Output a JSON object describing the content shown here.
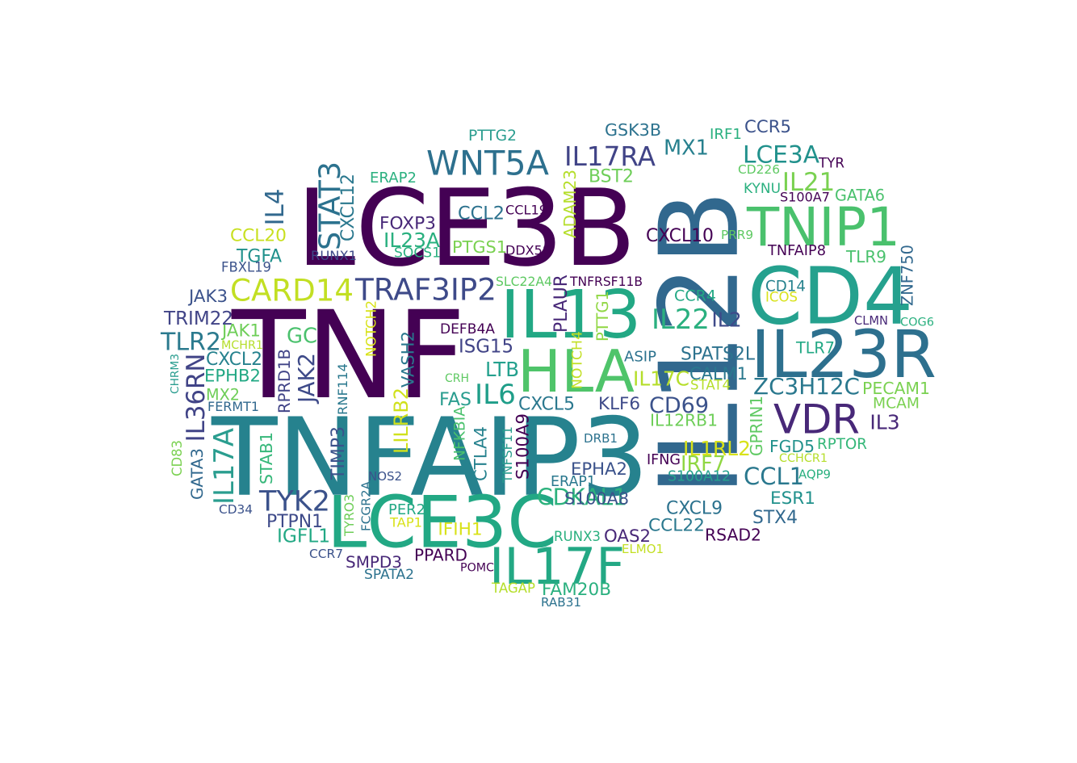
{
  "words": [
    {
      "text": "TNF",
      "color": "#440154"
    },
    {
      "text": "LCE3B",
      "color": "#440154"
    },
    {
      "text": "IL12B",
      "color": "#31688e"
    },
    {
      "text": "TNFAIP3",
      "color": "#26828e"
    },
    {
      "text": "CD4",
      "color": "#25a18e"
    },
    {
      "text": "LCE3C",
      "color": "#22a884"
    },
    {
      "text": "IL23R",
      "color": "#2d708e"
    },
    {
      "text": "HLA",
      "color": "#4fc46a"
    },
    {
      "text": "IL13",
      "color": "#22a884"
    },
    {
      "text": "TNIP1",
      "color": "#4ac16d"
    },
    {
      "text": "WNT5A",
      "color": "#2d708e"
    },
    {
      "text": "IL17F",
      "color": "#23a884"
    },
    {
      "text": "VDR",
      "color": "#482878"
    },
    {
      "text": "CARD14",
      "color": "#c2df23"
    },
    {
      "text": "TRAF3IP2",
      "color": "#3e4a89"
    },
    {
      "text": "CDKAL1",
      "color": "#2db27d"
    },
    {
      "text": "ZC3H12C",
      "color": "#2a788e"
    },
    {
      "text": "TYK2",
      "color": "#3b528b"
    },
    {
      "text": "IL17RA",
      "color": "#414487"
    },
    {
      "text": "LCE3A",
      "color": "#21918c"
    },
    {
      "text": "STAT3",
      "color": "#2c728e"
    },
    {
      "text": "IL17A",
      "color": "#2a9d8f"
    },
    {
      "text": "IL36RN",
      "color": "#414487"
    },
    {
      "text": "CD69",
      "color": "#3b528b"
    },
    {
      "text": "MX1",
      "color": "#27808e"
    },
    {
      "text": "IL22",
      "color": "#2ab07f"
    },
    {
      "text": "TLR2",
      "color": "#2b7a8e"
    },
    {
      "text": "JAK2",
      "color": "#3e4a89"
    },
    {
      "text": "GC",
      "color": "#4ac16d"
    },
    {
      "text": "IL6",
      "color": "#1f9e89"
    },
    {
      "text": "CCL1",
      "color": "#2a788e"
    },
    {
      "text": "IL21",
      "color": "#7ad151"
    },
    {
      "text": "PECAM1",
      "color": "#7ad151"
    },
    {
      "text": "IL4",
      "color": "#31688e"
    },
    {
      "text": "CXCL12",
      "color": "#2a788e"
    },
    {
      "text": "CCL20",
      "color": "#c8e020"
    },
    {
      "text": "FOXP3",
      "color": "#482878"
    },
    {
      "text": "CCL2",
      "color": "#2c728e"
    },
    {
      "text": "PTGS1",
      "color": "#7ad151"
    },
    {
      "text": "IL23A",
      "color": "#2ab07f"
    },
    {
      "text": "ADAM23",
      "color": "#b5de2b"
    },
    {
      "text": "BST2",
      "color": "#6ece58"
    },
    {
      "text": "CXCL10",
      "color": "#440154"
    },
    {
      "text": "TGFA",
      "color": "#21918c"
    },
    {
      "text": "PLAUR",
      "color": "#482878"
    },
    {
      "text": "PTTG1",
      "color": "#90d743"
    },
    {
      "text": "CCR4",
      "color": "#22a884"
    },
    {
      "text": "ISG15",
      "color": "#414487"
    },
    {
      "text": "VASH2",
      "color": "#2a788e"
    },
    {
      "text": "LILRB2",
      "color": "#d0e11c"
    },
    {
      "text": "TIMP3",
      "color": "#3b528b"
    },
    {
      "text": "CTLA4",
      "color": "#26828e"
    },
    {
      "text": "CXCL5",
      "color": "#2a788e"
    },
    {
      "text": "KLF6",
      "color": "#3e4a89"
    },
    {
      "text": "IL17C",
      "color": "#b5de2b"
    },
    {
      "text": "CALM1",
      "color": "#2a788e"
    },
    {
      "text": "SPATS2L",
      "color": "#2c728e"
    },
    {
      "text": "MCAM",
      "color": "#7ad151"
    },
    {
      "text": "IL3",
      "color": "#482878"
    },
    {
      "text": "FGD5",
      "color": "#21918c"
    },
    {
      "text": "RPTOR",
      "color": "#35b779"
    },
    {
      "text": "IRF7",
      "color": "#90d743"
    },
    {
      "text": "IL1RL2",
      "color": "#d8e219"
    },
    {
      "text": "GPRIN1",
      "color": "#5ec962"
    },
    {
      "text": "ESR1",
      "color": "#21918c"
    },
    {
      "text": "STX4",
      "color": "#31688e"
    },
    {
      "text": "RSAD2",
      "color": "#440154"
    },
    {
      "text": "CXCL9",
      "color": "#2c728e"
    },
    {
      "text": "CCL22",
      "color": "#2a788e"
    },
    {
      "text": "OAS2",
      "color": "#482878"
    },
    {
      "text": "EPHA2",
      "color": "#3b528b"
    },
    {
      "text": "S100A8",
      "color": "#3b528b"
    },
    {
      "text": "S100A9",
      "color": "#440154"
    },
    {
      "text": "TNFSF11",
      "color": "#2a9d8f"
    },
    {
      "text": "NFKBIA",
      "color": "#4ac16d"
    },
    {
      "text": "FAS",
      "color": "#2a9d8f"
    },
    {
      "text": "LTB",
      "color": "#25a18e"
    },
    {
      "text": "CRH",
      "color": "#5ec962"
    },
    {
      "text": "NOTCH4",
      "color": "#c2df23"
    },
    {
      "text": "ASIP",
      "color": "#2c728e"
    },
    {
      "text": "DEFB4A",
      "color": "#440154"
    },
    {
      "text": "NOTCH2",
      "color": "#d8e219"
    },
    {
      "text": "RPRD1B",
      "color": "#414487"
    },
    {
      "text": "STAB1",
      "color": "#35b779"
    },
    {
      "text": "RNF114",
      "color": "#2a788e"
    },
    {
      "text": "GATA3",
      "color": "#31688e"
    },
    {
      "text": "CD83",
      "color": "#7ad151"
    },
    {
      "text": "CHRM3",
      "color": "#2a9d8f"
    },
    {
      "text": "MX2",
      "color": "#6ece58"
    },
    {
      "text": "FERMT1",
      "color": "#31688e"
    },
    {
      "text": "EPHB2",
      "color": "#22a884"
    },
    {
      "text": "CXCL2",
      "color": "#26828e"
    },
    {
      "text": "JAK1",
      "color": "#6ece58"
    },
    {
      "text": "MCHR1",
      "color": "#b5de2b"
    },
    {
      "text": "TRIM22",
      "color": "#414487"
    },
    {
      "text": "JAK3",
      "color": "#3b528b"
    },
    {
      "text": "FBXL19",
      "color": "#3b528b"
    },
    {
      "text": "RUNX1",
      "color": "#3e4a89"
    },
    {
      "text": "SOCS1",
      "color": "#2ab07f"
    },
    {
      "text": "SLC22A4",
      "color": "#5ec962"
    },
    {
      "text": "TNFRSF11B",
      "color": "#440154"
    },
    {
      "text": "DDX58",
      "color": "#440154"
    },
    {
      "text": "CCL19",
      "color": "#440154"
    },
    {
      "text": "ERAP2",
      "color": "#2ab07f"
    },
    {
      "text": "PTTG2",
      "color": "#2a9d8f"
    },
    {
      "text": "GSK3B",
      "color": "#2c728e"
    },
    {
      "text": "IRF1",
      "color": "#2ab07f"
    },
    {
      "text": "CCR5",
      "color": "#3b528b"
    },
    {
      "text": "TYR",
      "color": "#440154"
    },
    {
      "text": "CD226",
      "color": "#5ec962"
    },
    {
      "text": "KYNU",
      "color": "#2ab07f"
    },
    {
      "text": "S100A7",
      "color": "#440154"
    },
    {
      "text": "GATA6",
      "color": "#4ac16d"
    },
    {
      "text": "PRR9",
      "color": "#5ec962"
    },
    {
      "text": "TNFAIP8",
      "color": "#440154"
    },
    {
      "text": "TLR9",
      "color": "#4ac16d"
    },
    {
      "text": "ZNF750",
      "color": "#31688e"
    },
    {
      "text": "CD14",
      "color": "#26828e"
    },
    {
      "text": "ICOS",
      "color": "#d8e219"
    },
    {
      "text": "COG6",
      "color": "#2ab07f"
    },
    {
      "text": "CLMN",
      "color": "#482878"
    },
    {
      "text": "TLR7",
      "color": "#22a884"
    },
    {
      "text": "IL2",
      "color": "#3e4a89"
    },
    {
      "text": "STAT4",
      "color": "#b5de2b"
    },
    {
      "text": "CCHCR1",
      "color": "#b5de2b"
    },
    {
      "text": "AQP9",
      "color": "#2ab07f"
    },
    {
      "text": "IL12RB1",
      "color": "#6ece58"
    },
    {
      "text": "IFNG",
      "color": "#440154"
    },
    {
      "text": "S100A12",
      "color": "#25a18e"
    },
    {
      "text": "DRB1",
      "color": "#2c728e"
    },
    {
      "text": "ERAP1",
      "color": "#2a788e"
    },
    {
      "text": "RUNX3",
      "color": "#2ab07f"
    },
    {
      "text": "ELMO1",
      "color": "#c2df23"
    },
    {
      "text": "FAM20B",
      "color": "#2ab07f"
    },
    {
      "text": "TAGAP",
      "color": "#b5de2b"
    },
    {
      "text": "RAB31",
      "color": "#2c728e"
    },
    {
      "text": "IFIH1",
      "color": "#d8e219"
    },
    {
      "text": "POMC",
      "color": "#440154"
    },
    {
      "text": "PPARD",
      "color": "#440154"
    },
    {
      "text": "SPATA2",
      "color": "#2c728e"
    },
    {
      "text": "SMPD3",
      "color": "#482878"
    },
    {
      "text": "PER2",
      "color": "#22a884"
    },
    {
      "text": "TAP1",
      "color": "#d8e219"
    },
    {
      "text": "NOS2",
      "color": "#3b528b"
    },
    {
      "text": "FCGR2A",
      "color": "#2c728e"
    },
    {
      "text": "TYRO3",
      "color": "#6ece58"
    },
    {
      "text": "CCR7",
      "color": "#3b528b"
    },
    {
      "text": "IGFL1",
      "color": "#22a884"
    },
    {
      "text": "PTPN1",
      "color": "#3e4a89"
    },
    {
      "text": "CD34",
      "color": "#3b528b"
    }
  ]
}
